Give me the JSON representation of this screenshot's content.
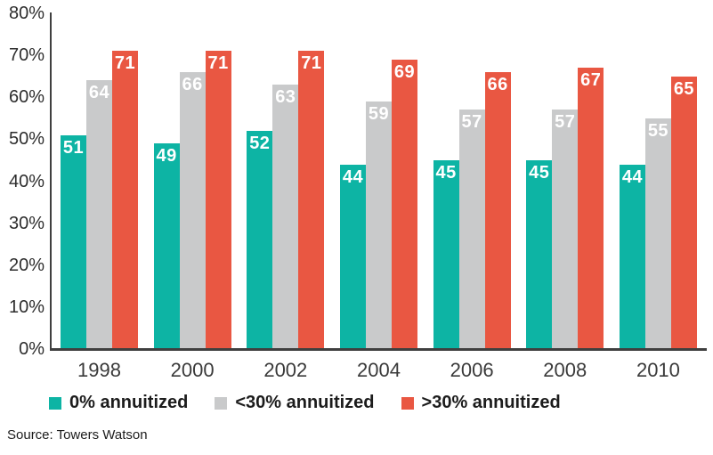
{
  "chart_data": {
    "type": "bar",
    "title": "",
    "xlabel": "",
    "ylabel": "",
    "categories": [
      "1998",
      "2000",
      "2002",
      "2004",
      "2006",
      "2008",
      "2010"
    ],
    "series": [
      {
        "name": "0% annuitized",
        "color": "#0db4a4",
        "values": [
          51,
          49,
          52,
          44,
          45,
          45,
          44
        ]
      },
      {
        "name": "<30% annuitized",
        "color": "#c9cacb",
        "values": [
          64,
          66,
          63,
          59,
          57,
          57,
          55
        ]
      },
      {
        "name": ">30% annuitized",
        "color": "#e95742",
        "values": [
          71,
          71,
          71,
          69,
          66,
          67,
          65
        ]
      }
    ],
    "ylim": [
      0,
      80
    ],
    "ytick_step": 10,
    "ytick_suffix": "%",
    "grid": false,
    "legend_position": "bottom",
    "value_labels": true,
    "axis_color": "#3f3f3f"
  },
  "footer": {
    "source": "Source: Towers Watson"
  }
}
